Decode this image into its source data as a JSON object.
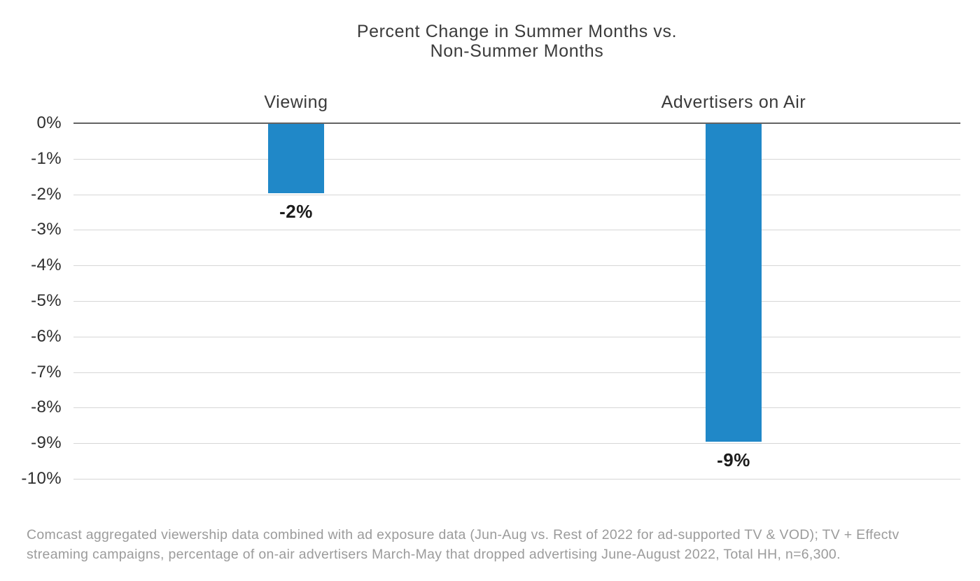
{
  "chart_data": {
    "type": "bar",
    "title": "Percent Change in Summer Months vs. Non-Summer Months",
    "title_lines": [
      "Percent Change in Summer Months vs.",
      "Non-Summer Months"
    ],
    "categories": [
      "Viewing",
      "Advertisers on Air"
    ],
    "values": [
      -2,
      -9
    ],
    "value_labels": [
      "-2%",
      "-9%"
    ],
    "ylabel": "",
    "xlabel": "",
    "ylim": [
      0,
      -10
    ],
    "ytick_step": 1,
    "ytick_labels": [
      "0%",
      "-1%",
      "-2%",
      "-3%",
      "-4%",
      "-5%",
      "-6%",
      "-7%",
      "-8%",
      "-9%",
      "-10%"
    ],
    "grid": true,
    "legend": "none",
    "bar_color": "#2088c8",
    "grid_color": "#d6d6d6",
    "zero_line_color": "#636363",
    "title_color": "#3b3b3b",
    "tick_label_color": "#2e2e2e",
    "value_label_color": "#1c1c1c"
  },
  "footnote": {
    "text": "Comcast aggregated viewership data combined with ad exposure data (Jun-Aug vs. Rest of 2022 for ad-supported TV & VOD); TV + Effectv streaming campaigns, percentage of on-air advertisers March-May that dropped advertising June-August 2022, Total HH, n=6,300.",
    "lines": [
      "Comcast aggregated viewership data combined with ad exposure data (Jun-Aug vs. Rest of 2022 for ad-supported TV & VOD); TV + Effectv",
      "streaming campaigns, percentage of on-air advertisers March-May that dropped advertising June-August 2022, Total HH, n=6,300."
    ]
  }
}
